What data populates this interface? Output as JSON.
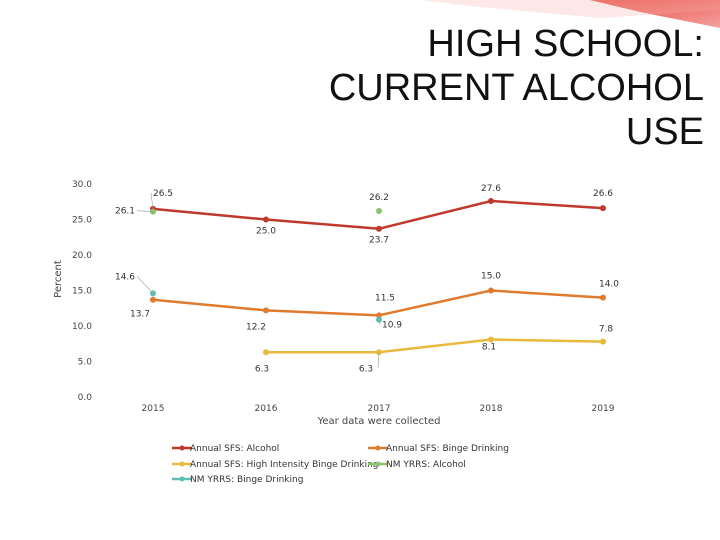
{
  "slide": {
    "title": "HIGH SCHOOL: CURRENT ALCOHOL USE"
  },
  "chart_data": {
    "type": "line",
    "x": [
      "2015",
      "2016",
      "2017",
      "2018",
      "2019"
    ],
    "xlabel": "Year data were collected",
    "ylabel": "Percent",
    "ylim": [
      0,
      30
    ],
    "yticks": [
      "0.0",
      "5.0",
      "10.0",
      "15.0",
      "20.0",
      "25.0",
      "30.0"
    ],
    "grid": false,
    "legend_position": "bottom",
    "series": [
      {
        "name": "Annual SFS: Alcohol",
        "color": "#c0392b",
        "values": [
          26.5,
          25.0,
          23.7,
          27.6,
          26.6
        ],
        "labels": [
          "26.5",
          "25.0",
          "23.7",
          "27.6",
          "26.6"
        ]
      },
      {
        "name": "Annual SFS: Binge Drinking",
        "color": "#e07b2e",
        "values": [
          13.7,
          12.2,
          11.5,
          15.0,
          14.0
        ],
        "labels": [
          "13.7",
          "12.2",
          "11.5",
          "15.0",
          "14.0"
        ]
      },
      {
        "name": "Annual SFS: High Intensity Binge Drinking",
        "color": "#e8b93c",
        "values": [
          null,
          6.3,
          6.3,
          8.1,
          7.8
        ],
        "labels": [
          null,
          "6.3",
          "6.3",
          "8.1",
          "7.8"
        ]
      },
      {
        "name": "NM YRRS: Alcohol",
        "color": "#8dc26f",
        "values": [
          26.1,
          null,
          26.2,
          null,
          null
        ],
        "labels": [
          "26.1",
          null,
          "26.2",
          null,
          null
        ]
      },
      {
        "name": "NM YRRS: Binge Drinking",
        "color": "#5bbfb5",
        "values": [
          14.6,
          null,
          10.9,
          null,
          null
        ],
        "labels": [
          "14.6",
          null,
          "10.9",
          null,
          null
        ]
      }
    ]
  }
}
